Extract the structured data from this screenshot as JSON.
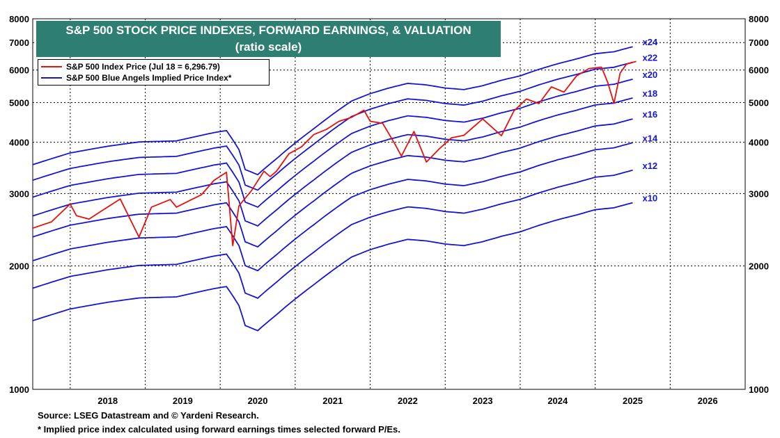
{
  "title": {
    "line1": "S&P 500 STOCK PRICE INDEXES, FORWARD EARNINGS, & VALUATION",
    "line2": "(ratio scale)"
  },
  "legend": {
    "items": [
      {
        "label": "S&P 500 Index Price (Jul 18 = 6,296.79)",
        "color": "#e8100a"
      },
      {
        "label": "S&P 500 Blue Angels Implied Price Index*",
        "color": "#1414d4"
      }
    ]
  },
  "footnotes": {
    "source": "Source: LSEG Datastream and © Yardeni Research.",
    "note": "* Implied price index calculated using forward earnings times selected forward P/Es."
  },
  "colors": {
    "price": "#e8100a",
    "implied": "#1414d4",
    "title_bg": "#2e7e72",
    "grid": "#000000"
  },
  "chart_data": {
    "type": "line",
    "scale": "log",
    "grid": true,
    "legend_position": "top-left",
    "ylim": [
      1000,
      8000
    ],
    "xlim": [
      "2017-07",
      "2026-12"
    ],
    "yticks": [
      1000,
      2000,
      3000,
      4000,
      5000,
      6000,
      7000,
      8000
    ],
    "ytick_labels": [
      "1000",
      "2000",
      "3000",
      "4000",
      "5000",
      "6000",
      "7000",
      "8000"
    ],
    "xtick_labels": [
      "2018",
      "2019",
      "2020",
      "2021",
      "2022",
      "2023",
      "2024",
      "2025",
      "2026"
    ],
    "forward_earnings": {
      "x": [
        "2017-07",
        "2018-01",
        "2018-07",
        "2018-12",
        "2019-06",
        "2019-12",
        "2020-02",
        "2020-04",
        "2020-05",
        "2020-07",
        "2020-10",
        "2021-01",
        "2021-04",
        "2021-07",
        "2021-10",
        "2022-01",
        "2022-04",
        "2022-07",
        "2022-10",
        "2023-01",
        "2023-04",
        "2023-07",
        "2023-10",
        "2024-01",
        "2024-04",
        "2024-07",
        "2024-10",
        "2025-01",
        "2025-04",
        "2025-07"
      ],
      "values": [
        147,
        157,
        163,
        167,
        168,
        176,
        178,
        160,
        143,
        139,
        152,
        166,
        180,
        195,
        210,
        219,
        226,
        232,
        230,
        226,
        224,
        229,
        236,
        242,
        251,
        259,
        266,
        274,
        277,
        285
      ]
    },
    "series": [
      {
        "name": "x24",
        "multiplier": 24
      },
      {
        "name": "x22",
        "multiplier": 22
      },
      {
        "name": "x20",
        "multiplier": 20
      },
      {
        "name": "x18",
        "multiplier": 18
      },
      {
        "name": "x16",
        "multiplier": 16
      },
      {
        "name": "x14",
        "multiplier": 14
      },
      {
        "name": "x12",
        "multiplier": 12
      },
      {
        "name": "x10",
        "multiplier": 10
      }
    ],
    "price": {
      "name": "S&P 500 Index Price (Jul 18 = 6,296.79)",
      "x": [
        "2017-07",
        "2017-10",
        "2018-01",
        "2018-02",
        "2018-04",
        "2018-06",
        "2018-09",
        "2018-12",
        "2019-02",
        "2019-05",
        "2019-06",
        "2019-08",
        "2019-10",
        "2019-12",
        "2020-02",
        "2020-03",
        "2020-04",
        "2020-06",
        "2020-08",
        "2020-09",
        "2020-10",
        "2020-12",
        "2021-02",
        "2021-04",
        "2021-06",
        "2021-08",
        "2021-10",
        "2021-12",
        "2022-01",
        "2022-03",
        "2022-05",
        "2022-06",
        "2022-08",
        "2022-10",
        "2022-12",
        "2023-02",
        "2023-04",
        "2023-07",
        "2023-10",
        "2023-12",
        "2024-02",
        "2024-04",
        "2024-06",
        "2024-08",
        "2024-10",
        "2024-12",
        "2025-02",
        "2025-03",
        "2025-04",
        "2025-05",
        "2025-06",
        "2025-07-18"
      ],
      "values": [
        2470,
        2560,
        2830,
        2650,
        2600,
        2720,
        2910,
        2350,
        2780,
        2900,
        2780,
        2880,
        2980,
        3230,
        3380,
        2240,
        2800,
        3050,
        3400,
        3300,
        3400,
        3750,
        3900,
        4180,
        4300,
        4500,
        4600,
        4790,
        4500,
        4450,
        3950,
        3700,
        4250,
        3580,
        3850,
        4100,
        4160,
        4560,
        4150,
        4770,
        5100,
        4970,
        5460,
        5300,
        5800,
        6050,
        6100,
        5600,
        4980,
        5900,
        6200,
        6296.79
      ]
    },
    "annotation": "Jul 18 = 6,296.79"
  }
}
